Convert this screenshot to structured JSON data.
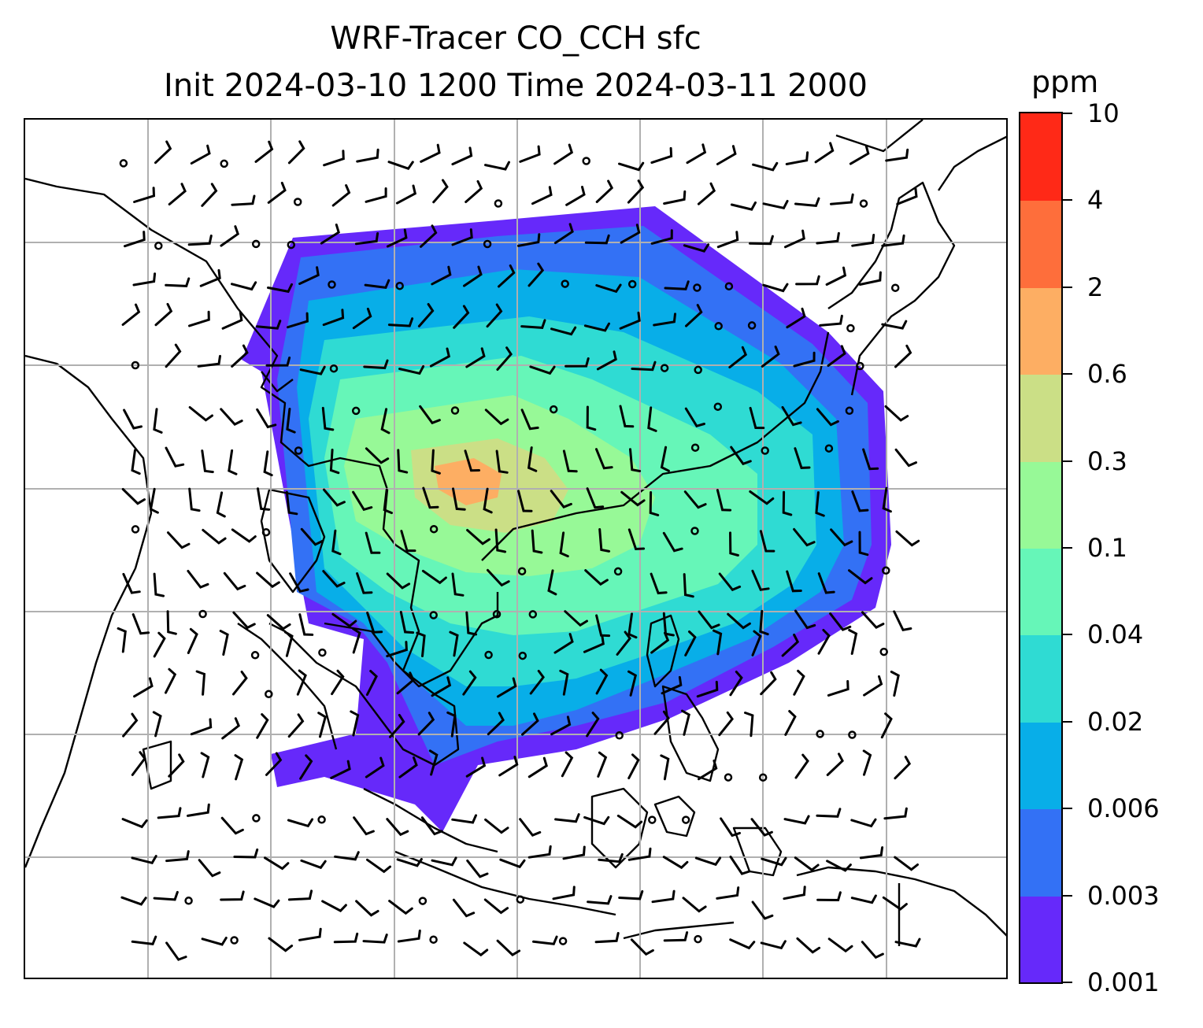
{
  "title": {
    "line1": "WRF-Tracer CO_CCH sfc",
    "line2": "Init 2024-03-10 1200 Time 2024-03-11 2000"
  },
  "colorbar": {
    "unit": "ppm",
    "ticks": [
      "0.001",
      "0.003",
      "0.006",
      "0.02",
      "0.04",
      "0.1",
      "0.3",
      "0.6",
      "2",
      "4",
      "10"
    ],
    "colors": [
      "#6629fa",
      "#3371f5",
      "#08aee8",
      "#2fdbd3",
      "#66f6b8",
      "#97f997",
      "#cbdf86",
      "#fdae63",
      "#fe6e3b",
      "#ff2917"
    ]
  },
  "map": {
    "gridlines": true,
    "fields": [
      "CO_CCH tracer concentration",
      "wind barbs"
    ],
    "plume_levels": [
      "0.001",
      "0.003",
      "0.006",
      "0.02",
      "0.04",
      "0.1",
      "0.3",
      "0.6"
    ]
  }
}
